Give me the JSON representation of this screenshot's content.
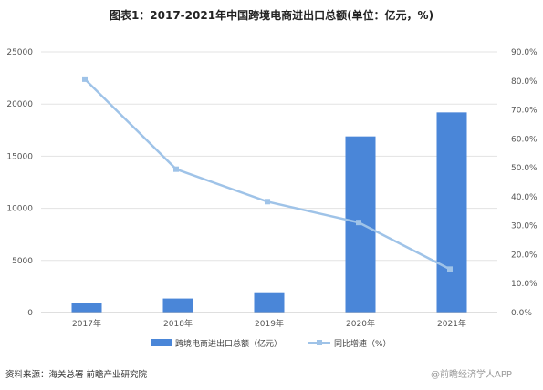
{
  "title": "图表1：2017-2021年中国跨境电商进出口总额(单位：亿元，%)",
  "source": "资料来源：海关总署 前瞻产业研究院",
  "watermark": "@前瞻经济学人APP",
  "colors": {
    "bar": "#4a86d8",
    "line": "#9fc3e8",
    "grid": "#e3e3e3"
  },
  "chart_data": {
    "type": "bar+line",
    "categories": [
      "2017年",
      "2018年",
      "2019年",
      "2020年",
      "2021年"
    ],
    "series": [
      {
        "name": "跨境电商进出口总额（亿元）",
        "type": "bar",
        "axis": "left",
        "values": [
          902,
          1347,
          1862,
          16900,
          19200
        ]
      },
      {
        "name": "同比增速（%）",
        "type": "line",
        "axis": "right",
        "values": [
          80.6,
          49.5,
          38.3,
          31.1,
          15.0
        ]
      }
    ],
    "y_left": {
      "ticks": [
        "0",
        "5000",
        "10000",
        "15000",
        "20000",
        "25000"
      ],
      "range": [
        0,
        25000
      ]
    },
    "y_right": {
      "ticks": [
        "0.0%",
        "10.0%",
        "20.0%",
        "30.0%",
        "40.0%",
        "50.0%",
        "60.0%",
        "70.0%",
        "80.0%",
        "90.0%"
      ],
      "range": [
        0,
        90
      ]
    },
    "grid": true,
    "legend_position": "bottom"
  }
}
